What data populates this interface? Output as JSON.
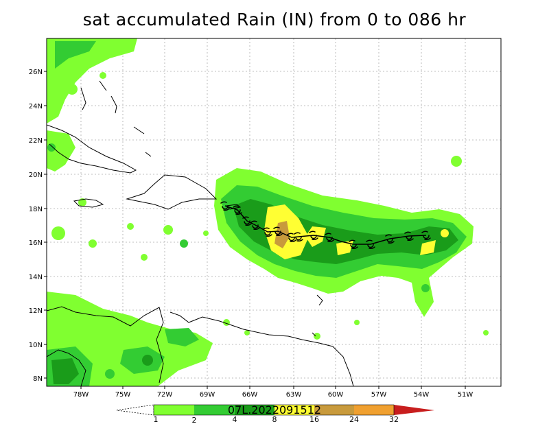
{
  "title": "sat accumulated Rain (IN) from 0 to 086 hr",
  "storm_label": "07L.2022091512",
  "lat_labels": [
    "26N",
    "24N",
    "22N",
    "20N",
    "18N",
    "16N",
    "14N",
    "12N",
    "10N",
    "8N"
  ],
  "lon_labels": [
    "78W",
    "75W",
    "72W",
    "69W",
    "66W",
    "63W",
    "60W",
    "57W",
    "54W",
    "51W"
  ],
  "colorbar": {
    "levels": [
      "1",
      "2",
      "4",
      "8",
      "16",
      "24",
      "32"
    ],
    "colors": [
      "#ffffff",
      "#80ff30",
      "#33cc33",
      "#1a9c1a",
      "#ffff33",
      "#c89a3c",
      "#f0a030",
      "#c81e1e"
    ]
  },
  "track_symbol": "tropical-storm-icon"
}
